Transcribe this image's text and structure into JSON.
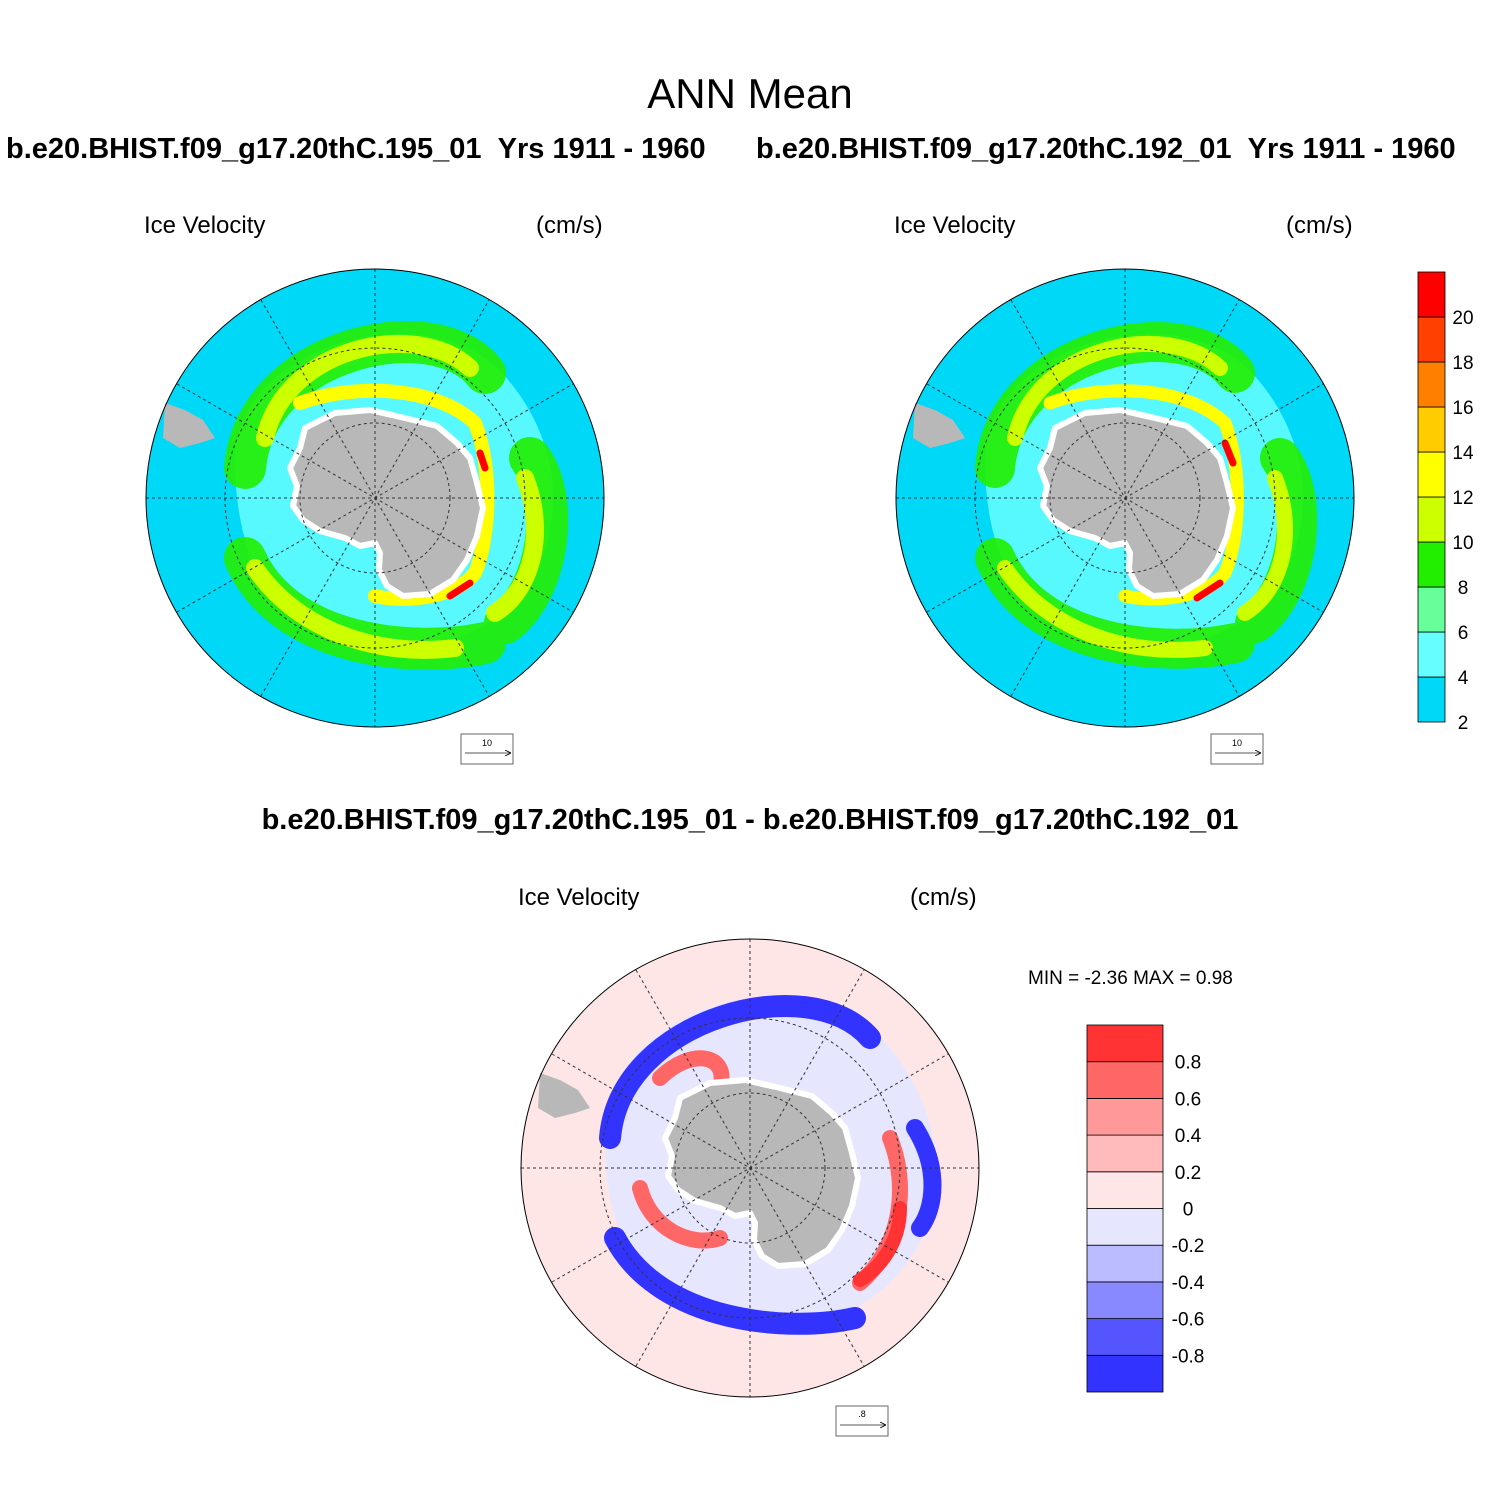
{
  "main_title": "ANN Mean",
  "panels": [
    {
      "case": "b.e20.BHIST.f09_g17.20thC.195_01",
      "years": "Yrs 1911 - 1960",
      "variable": "Ice Velocity",
      "units": "(cm/s)",
      "reference_vector": "10"
    },
    {
      "case": "b.e20.BHIST.f09_g17.20thC.192_01",
      "years": "Yrs 1911 - 1960",
      "variable": "Ice Velocity",
      "units": "(cm/s)",
      "reference_vector": "10"
    }
  ],
  "top_colorbar": {
    "labels": [
      "20",
      "18",
      "16",
      "14",
      "12",
      "10",
      "8",
      "6",
      "4",
      "2"
    ],
    "colors": [
      "#00d8f8",
      "#66ffff",
      "#66ff99",
      "#22ee00",
      "#ccff00",
      "#ffff00",
      "#ffcc00",
      "#ff8000",
      "#ff4000",
      "#ff0000"
    ]
  },
  "difference": {
    "title": "b.e20.BHIST.f09_g17.20thC.195_01 - b.e20.BHIST.f09_g17.20thC.192_01",
    "variable": "Ice Velocity",
    "units": "(cm/s)",
    "min_max": "MIN =  -2.36 MAX =   0.98",
    "reference_vector": ".8",
    "colorbar": {
      "labels": [
        "0.8",
        "0.6",
        "0.4",
        "0.2",
        "0",
        "-0.2",
        "-0.4",
        "-0.6",
        "-0.8"
      ],
      "colors": [
        "#ff3333",
        "#ff6666",
        "#ff9999",
        "#ffbbbb",
        "#ffe6e6",
        "#e6e6ff",
        "#bbbbff",
        "#8888ff",
        "#5555ff",
        "#3333ff"
      ]
    }
  },
  "colors": {
    "open_ocean": "#00d8f8",
    "land": "#b8b8b8",
    "diff_background": "#ffe6e6"
  }
}
